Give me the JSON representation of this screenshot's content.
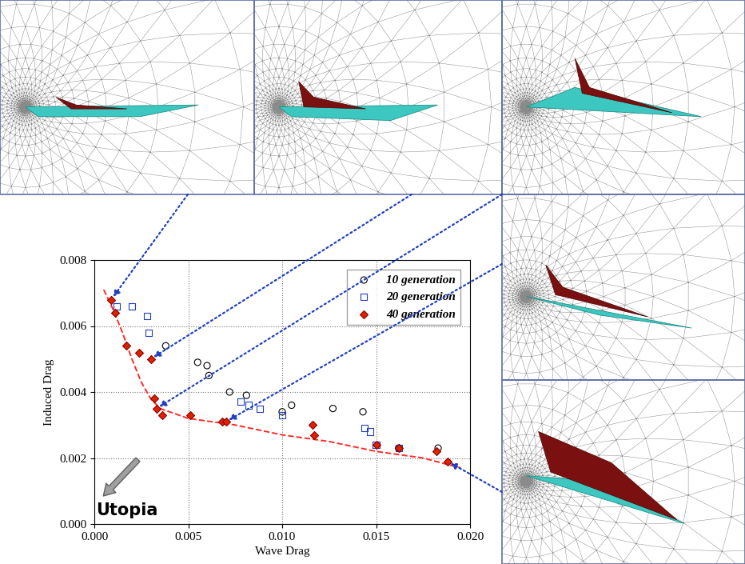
{
  "chart_data": {
    "type": "scatter",
    "x_label": "Wave Drag",
    "y_label": "Induced Drag",
    "xlim": [
      0.0,
      0.02
    ],
    "xticks": [
      {
        "value": 0.0,
        "label": "0.000"
      },
      {
        "value": 0.005,
        "label": "0.005"
      },
      {
        "value": 0.01,
        "label": "0.010"
      },
      {
        "value": 0.015,
        "label": "0.015"
      },
      {
        "value": 0.02,
        "label": "0.020"
      }
    ],
    "ylim": [
      0.0,
      0.008
    ],
    "yticks": [
      {
        "value": 0.0,
        "label": "0.000"
      },
      {
        "value": 0.002,
        "label": "0.002"
      },
      {
        "value": 0.004,
        "label": "0.004"
      },
      {
        "value": 0.006,
        "label": "0.006"
      },
      {
        "value": 0.008,
        "label": "0.008"
      }
    ],
    "grid": true,
    "legend": "upper right",
    "annotations": [
      "Utopia"
    ],
    "series": [
      {
        "name": "10 generation",
        "type": "scatter",
        "marker": "circle",
        "color": "#000000",
        "x": [
          0.0038,
          0.0055,
          0.006,
          0.0061,
          0.0072,
          0.0081,
          0.01,
          0.0105,
          0.0127,
          0.0143,
          0.0162,
          0.0183
        ],
        "values": [
          0.0054,
          0.0049,
          0.0048,
          0.0045,
          0.004,
          0.0039,
          0.0034,
          0.0036,
          0.0035,
          0.0034,
          0.0023,
          0.0023
        ]
      },
      {
        "name": "20 generation",
        "type": "scatter",
        "marker": "square",
        "color": "#1f3fbf",
        "x": [
          0.0012,
          0.002,
          0.0028,
          0.0029,
          0.0078,
          0.0082,
          0.0088,
          0.01,
          0.0144,
          0.0147,
          0.015,
          0.0162
        ],
        "values": [
          0.0066,
          0.0066,
          0.0063,
          0.0058,
          0.0037,
          0.0036,
          0.0035,
          0.0033,
          0.0029,
          0.0028,
          0.0024,
          0.0023
        ]
      },
      {
        "name": "40 generation",
        "type": "scatter",
        "marker": "diamond",
        "color": "#dd2200",
        "x": [
          0.0009,
          0.0011,
          0.0017,
          0.0024,
          0.003,
          0.0032,
          0.0033,
          0.0036,
          0.0051,
          0.0068,
          0.007,
          0.0116,
          0.0117,
          0.015,
          0.0162,
          0.0182,
          0.0188
        ],
        "values": [
          0.0068,
          0.0064,
          0.0054,
          0.0052,
          0.005,
          0.0038,
          0.0035,
          0.0033,
          0.0033,
          0.0031,
          0.0031,
          0.003,
          0.0027,
          0.0024,
          0.0023,
          0.0022,
          0.0019
        ]
      },
      {
        "type": "line",
        "line_style": "dashed",
        "color": "#ff2a2a",
        "x": [
          0.0005,
          0.001,
          0.0015,
          0.002,
          0.0025,
          0.003,
          0.0035,
          0.005,
          0.0075,
          0.01,
          0.0125,
          0.015,
          0.0175,
          0.0195
        ],
        "values": [
          0.0071,
          0.0065,
          0.0058,
          0.005,
          0.0043,
          0.0038,
          0.0035,
          0.0032,
          0.003,
          0.0027,
          0.0025,
          0.0022,
          0.002,
          0.0017
        ]
      }
    ]
  }
}
